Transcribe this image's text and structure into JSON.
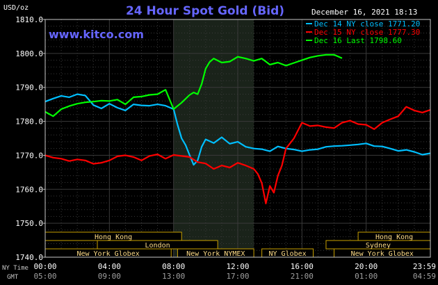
{
  "chart_data": {
    "type": "line",
    "title": "24 Hour Spot Gold (Bid)",
    "website": "www.kitco.com",
    "unit_label": "USD/oz",
    "date_label": "December 16, 2021 18:13",
    "ylim": [
      1740,
      1810
    ],
    "y_ticks": [
      1740,
      1750,
      1760,
      1770,
      1780,
      1790,
      1800,
      1810
    ],
    "y_tick_labels": [
      "1740.0",
      "1750.0",
      "1760.0",
      "1770.0",
      "1780.0",
      "1790.0",
      "1800.0",
      "1810.0"
    ],
    "xlim": [
      0,
      24
    ],
    "x_ticks": [
      0,
      4,
      8,
      12,
      16,
      20,
      24
    ],
    "x_tick_labels_ny": [
      "00:00",
      "04:00",
      "08:00",
      "12:00",
      "16:00",
      "20:00",
      "23:59"
    ],
    "x_tick_labels_gmt": [
      "05:00",
      "09:00",
      "13:00",
      "17:00",
      "21:00",
      "01:00",
      "04:59"
    ],
    "row_label_ny": "NY Time",
    "row_label_gmt": "GMT",
    "shaded_region": [
      8,
      13
    ],
    "grid": true,
    "legend_position": "top-right",
    "series": [
      {
        "name": "Dec 14 NY close 1771.20",
        "color": "#00bfff",
        "x": [
          0,
          0.5,
          1,
          1.5,
          2,
          2.5,
          3,
          3.5,
          4,
          4.5,
          5,
          5.5,
          6,
          6.5,
          7,
          7.5,
          8,
          8.25,
          8.5,
          8.75,
          9,
          9.25,
          9.5,
          9.75,
          10,
          10.5,
          11,
          11.5,
          12,
          12.5,
          13,
          13.5,
          14,
          14.5,
          15,
          15.5,
          16,
          16.5,
          17,
          17.5,
          18,
          18.5,
          19,
          19.5,
          20,
          20.5,
          21,
          21.5,
          22,
          22.5,
          23,
          23.5,
          24
        ],
        "y": [
          1785.8,
          1786.7,
          1787.5,
          1787.1,
          1788.0,
          1787.6,
          1784.8,
          1783.8,
          1785.2,
          1784.0,
          1783.2,
          1785.0,
          1784.7,
          1784.6,
          1785.0,
          1784.6,
          1783.6,
          1779.0,
          1775.0,
          1773.0,
          1770.0,
          1767.2,
          1768.5,
          1772.5,
          1774.7,
          1773.6,
          1775.3,
          1773.4,
          1774.0,
          1772.5,
          1772.0,
          1771.8,
          1771.2,
          1772.6,
          1772.0,
          1771.7,
          1771.2,
          1771.6,
          1771.8,
          1772.5,
          1772.7,
          1772.8,
          1773.0,
          1773.2,
          1773.5,
          1772.7,
          1772.6,
          1772.0,
          1771.3,
          1771.6,
          1771.0,
          1770.2,
          1770.6
        ]
      },
      {
        "name": "Dec 15 NY close 1777.30",
        "color": "#ff0000",
        "x": [
          0,
          0.5,
          1,
          1.5,
          2,
          2.5,
          3,
          3.5,
          4,
          4.5,
          5,
          5.5,
          6,
          6.5,
          7,
          7.5,
          8,
          8.5,
          9,
          9.5,
          10,
          10.5,
          11,
          11.5,
          12,
          12.5,
          13,
          13.25,
          13.5,
          13.75,
          14,
          14.25,
          14.5,
          14.75,
          15,
          15.5,
          16,
          16.5,
          17,
          17.5,
          18,
          18.5,
          19,
          19.5,
          20,
          20.5,
          21,
          21.5,
          22,
          22.5,
          23,
          23.5,
          24
        ],
        "y": [
          1770.0,
          1769.3,
          1769.0,
          1768.3,
          1768.8,
          1768.5,
          1767.5,
          1767.8,
          1768.5,
          1769.7,
          1770.0,
          1769.5,
          1768.5,
          1769.8,
          1770.3,
          1769.0,
          1770.1,
          1769.8,
          1769.5,
          1768.0,
          1767.6,
          1766.0,
          1767.0,
          1766.4,
          1767.8,
          1767.0,
          1766.0,
          1764.5,
          1761.8,
          1755.8,
          1761.0,
          1759.0,
          1764.0,
          1767.0,
          1772.0,
          1775.0,
          1779.6,
          1778.6,
          1778.8,
          1778.3,
          1778.0,
          1779.6,
          1780.2,
          1779.2,
          1779.0,
          1777.7,
          1779.6,
          1780.6,
          1781.5,
          1784.3,
          1783.2,
          1782.6,
          1783.4
        ]
      },
      {
        "name": "Dec 16 Last 1798.60",
        "color": "#00ff00",
        "x": [
          0,
          0.5,
          1,
          1.5,
          2,
          2.5,
          3,
          3.5,
          4,
          4.5,
          5,
          5.5,
          6,
          6.5,
          7,
          7.5,
          8,
          8.5,
          9,
          9.25,
          9.5,
          9.75,
          10,
          10.25,
          10.5,
          11,
          11.5,
          12,
          12.5,
          13,
          13.5,
          14,
          14.5,
          15,
          15.5,
          16,
          16.5,
          17,
          17.5,
          18,
          18.5
        ],
        "y": [
          1782.8,
          1781.5,
          1783.6,
          1784.5,
          1785.2,
          1785.6,
          1785.8,
          1786.1,
          1786.0,
          1786.4,
          1785.0,
          1787.1,
          1787.3,
          1787.8,
          1788.0,
          1789.3,
          1783.6,
          1785.5,
          1787.8,
          1788.5,
          1788.0,
          1791.0,
          1795.5,
          1797.5,
          1798.5,
          1797.3,
          1797.6,
          1799.0,
          1798.5,
          1797.8,
          1798.5,
          1796.7,
          1797.3,
          1796.4,
          1797.2,
          1798.0,
          1798.8,
          1799.3,
          1799.6,
          1799.6,
          1798.6
        ]
      }
    ],
    "session_bars": [
      {
        "label": "Hong Kong",
        "row": 1,
        "start": 0,
        "end": 8.5
      },
      {
        "label": "London",
        "row": 2,
        "start": 3.25,
        "end": 10.75
      },
      {
        "label": "New York Globex",
        "row": 3,
        "start": 0,
        "end": 7.85
      },
      {
        "label": "New York NYMEX",
        "row": 3,
        "start": 8.25,
        "end": 13.0
      },
      {
        "label": "NY Globex",
        "row": 3,
        "start": 13.5,
        "end": 16.7
      },
      {
        "label": "Hong Kong",
        "row": 1,
        "start": 19.5,
        "end": 24
      },
      {
        "label": "Sydney",
        "row": 2,
        "start": 17.5,
        "end": 24
      },
      {
        "label": "New York Globex",
        "row": 3,
        "start": 18.0,
        "end": 24
      }
    ]
  }
}
